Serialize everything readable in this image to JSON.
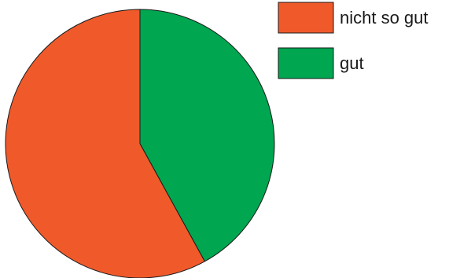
{
  "chart_data": {
    "type": "pie",
    "labels": [
      "nicht so gut",
      "gut"
    ],
    "values": [
      58,
      42
    ],
    "colors": [
      "#f05a2b",
      "#00a650"
    ],
    "legend_position": "top-right",
    "title": "",
    "start_angle_note": "clockwise from 12 o'clock"
  },
  "legend": {
    "items": [
      {
        "label": "nicht so gut",
        "color": "#f05a2b"
      },
      {
        "label": "gut",
        "color": "#00a650"
      }
    ]
  }
}
